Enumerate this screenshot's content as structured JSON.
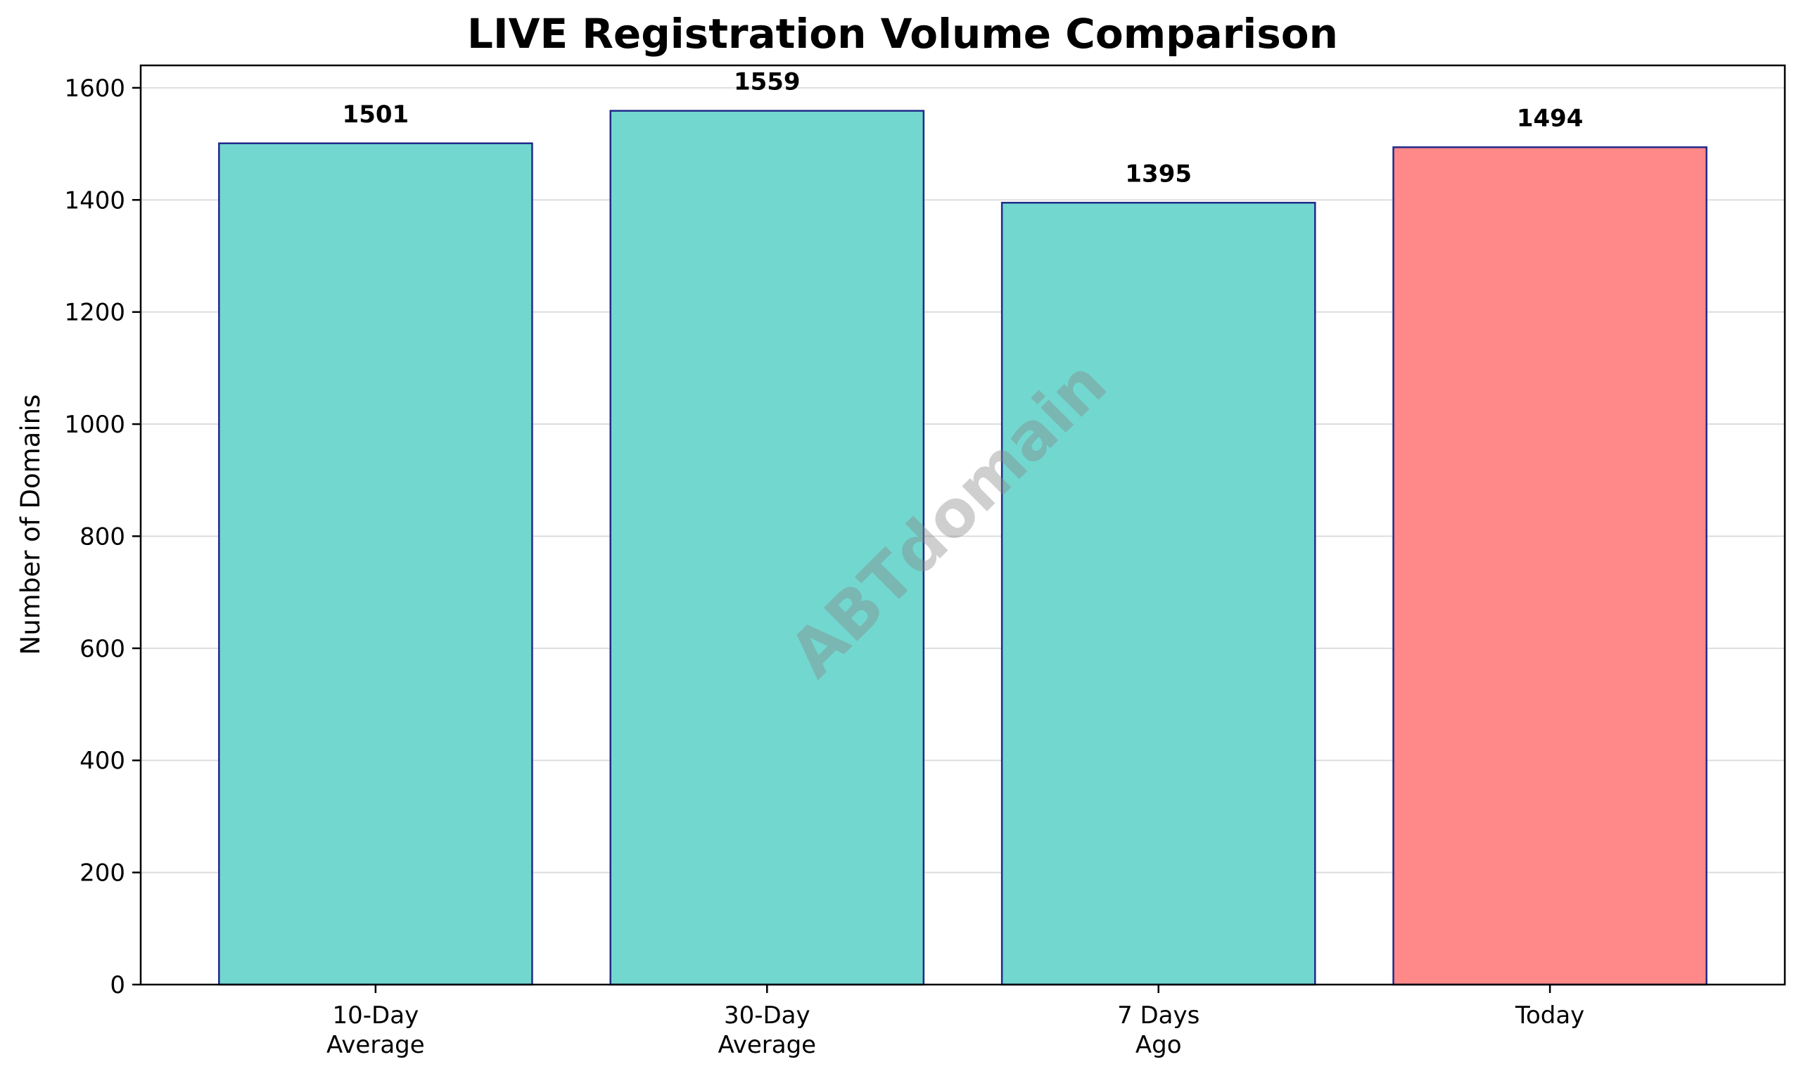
{
  "chart_data": {
    "type": "bar",
    "title": "LIVE Registration Volume Comparison",
    "xlabel": "",
    "ylabel": "Number of Domains",
    "categories": [
      [
        "10-Day",
        "Average"
      ],
      [
        "30-Day",
        "Average"
      ],
      [
        "7 Days",
        "Ago"
      ],
      [
        "Today"
      ]
    ],
    "values": [
      1501,
      1559,
      1395,
      1494
    ],
    "data_labels": [
      "1501",
      "1559",
      "1395",
      "1494"
    ],
    "colors": [
      "#72d7cf",
      "#72d7cf",
      "#72d7cf",
      "#ff8989"
    ],
    "edge_color": "#1f2a8a",
    "ylim": [
      0,
      1640
    ],
    "yticks": [
      0,
      200,
      400,
      600,
      800,
      1000,
      1200,
      1400,
      1600
    ],
    "grid": "horizontal",
    "legend": "none",
    "watermark": "ABTdomain"
  }
}
